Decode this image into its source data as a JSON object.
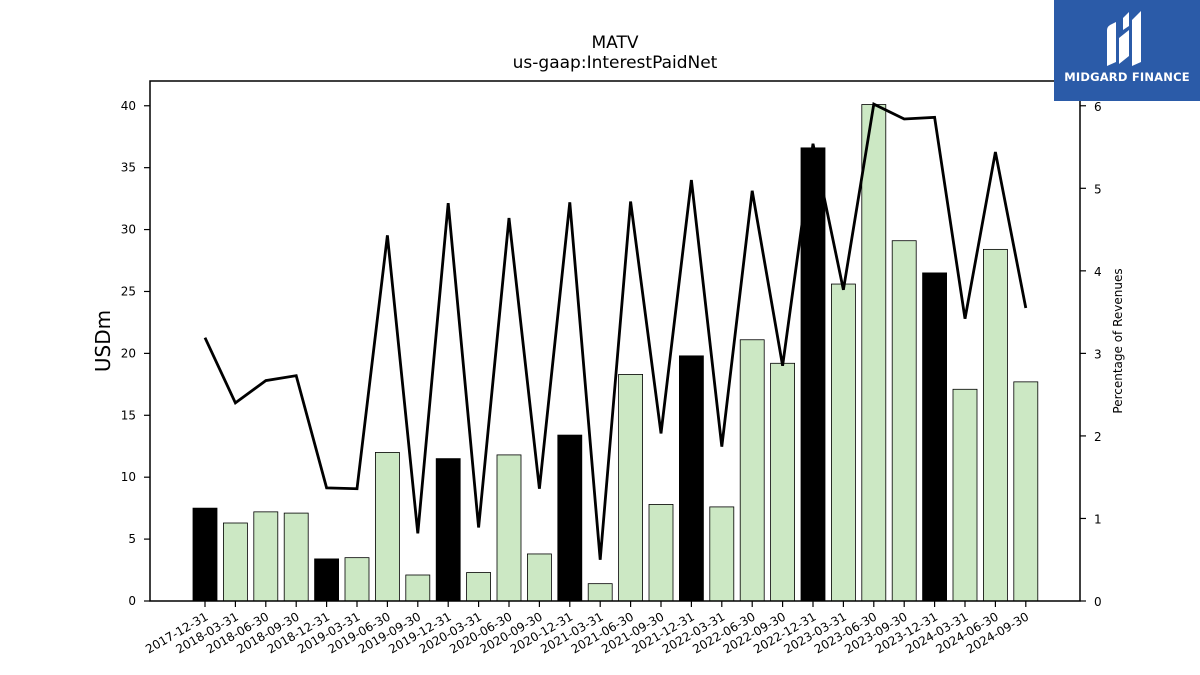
{
  "chart_data": {
    "type": "bar",
    "title": "MATV",
    "subtitle": "us-gaap:InterestPaidNet",
    "ylabel": "USDm",
    "y2label": "Percentage of Revenues",
    "ylim": [
      0,
      42
    ],
    "y2lim": [
      0,
      6.3
    ],
    "yticks": [
      0,
      5,
      10,
      15,
      20,
      25,
      30,
      35,
      40
    ],
    "y2ticks": [
      0,
      1,
      2,
      3,
      4,
      5,
      6
    ],
    "categories": [
      "2017-12-31",
      "2018-03-31",
      "2018-06-30",
      "2018-09-30",
      "2018-12-31",
      "2019-03-31",
      "2019-06-30",
      "2019-09-30",
      "2019-12-31",
      "2020-03-31",
      "2020-06-30",
      "2020-09-30",
      "2020-12-31",
      "2021-03-31",
      "2021-06-30",
      "2021-09-30",
      "2021-12-31",
      "2022-03-31",
      "2022-06-30",
      "2022-09-30",
      "2022-12-31",
      "2023-03-31",
      "2023-06-30",
      "2023-09-30",
      "2023-12-31",
      "2024-03-31",
      "2024-06-30",
      "2024-09-30"
    ],
    "series": [
      {
        "type": "bar",
        "values": [
          7.5,
          6.3,
          7.2,
          7.1,
          3.4,
          3.5,
          12.0,
          2.1,
          11.5,
          2.3,
          11.8,
          3.8,
          13.4,
          1.4,
          18.3,
          7.8,
          19.8,
          7.6,
          21.1,
          19.2,
          36.6,
          25.6,
          40.1,
          29.1,
          26.5,
          17.1,
          28.4,
          17.7
        ],
        "colors": [
          "#000000",
          "#cce8c4",
          "#cce8c4",
          "#cce8c4",
          "#000000",
          "#cce8c4",
          "#cce8c4",
          "#cce8c4",
          "#000000",
          "#cce8c4",
          "#cce8c4",
          "#cce8c4",
          "#000000",
          "#cce8c4",
          "#cce8c4",
          "#cce8c4",
          "#000000",
          "#cce8c4",
          "#cce8c4",
          "#cce8c4",
          "#000000",
          "#cce8c4",
          "#cce8c4",
          "#cce8c4",
          "#000000",
          "#cce8c4",
          "#cce8c4",
          "#cce8c4"
        ]
      },
      {
        "type": "line",
        "axis": "right",
        "color": "#000000",
        "values": [
          3.19,
          2.4,
          2.67,
          2.73,
          1.37,
          1.36,
          4.43,
          0.82,
          4.82,
          0.89,
          4.64,
          1.36,
          4.83,
          0.5,
          4.84,
          2.03,
          5.1,
          1.87,
          4.97,
          2.85,
          5.54,
          3.77,
          6.02,
          5.84,
          5.86,
          3.42,
          5.44,
          3.55
        ]
      }
    ]
  },
  "logo": {
    "text": "MIDGARD FINANCE",
    "icon": "midgard-logo-icon"
  }
}
